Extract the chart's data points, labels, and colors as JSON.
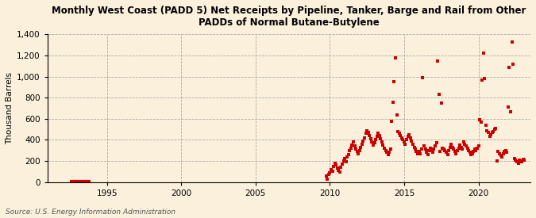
{
  "title": "Monthly West Coast (PADD 5) Net Receipts by Pipeline, Tanker, Barge and Rail from Other\nPADDs of Normal Butane-Butylene",
  "ylabel": "Thousand Barrels",
  "source": "Source: U.S. Energy Information Administration",
  "background_color": "#FAF0DC",
  "plot_bg_color": "#FAF0DC",
  "marker_color": "#CC0000",
  "ylim": [
    0,
    1400
  ],
  "yticks": [
    0,
    200,
    400,
    600,
    800,
    1000,
    1200,
    1400
  ],
  "xlim_start": 1991.0,
  "xlim_end": 2023.5,
  "xticks": [
    1995,
    2000,
    2005,
    2010,
    2015,
    2020
  ],
  "early_line": [
    1992.5,
    1993.9
  ],
  "scatter_data": [
    [
      2009.75,
      55
    ],
    [
      2009.83,
      30
    ],
    [
      2009.92,
      75
    ],
    [
      2010.0,
      90
    ],
    [
      2010.08,
      120
    ],
    [
      2010.17,
      100
    ],
    [
      2010.25,
      150
    ],
    [
      2010.33,
      180
    ],
    [
      2010.42,
      160
    ],
    [
      2010.5,
      130
    ],
    [
      2010.58,
      110
    ],
    [
      2010.67,
      95
    ],
    [
      2010.75,
      140
    ],
    [
      2010.83,
      170
    ],
    [
      2010.92,
      200
    ],
    [
      2011.0,
      220
    ],
    [
      2011.08,
      190
    ],
    [
      2011.17,
      240
    ],
    [
      2011.25,
      260
    ],
    [
      2011.33,
      300
    ],
    [
      2011.42,
      320
    ],
    [
      2011.5,
      350
    ],
    [
      2011.58,
      380
    ],
    [
      2011.67,
      340
    ],
    [
      2011.75,
      310
    ],
    [
      2011.83,
      290
    ],
    [
      2011.92,
      270
    ],
    [
      2012.0,
      300
    ],
    [
      2012.08,
      330
    ],
    [
      2012.17,
      360
    ],
    [
      2012.25,
      390
    ],
    [
      2012.33,
      420
    ],
    [
      2012.42,
      460
    ],
    [
      2012.5,
      490
    ],
    [
      2012.58,
      470
    ],
    [
      2012.67,
      440
    ],
    [
      2012.75,
      410
    ],
    [
      2012.83,
      380
    ],
    [
      2012.92,
      350
    ],
    [
      2013.0,
      370
    ],
    [
      2013.08,
      400
    ],
    [
      2013.17,
      430
    ],
    [
      2013.25,
      460
    ],
    [
      2013.33,
      440
    ],
    [
      2013.42,
      410
    ],
    [
      2013.5,
      380
    ],
    [
      2013.58,
      350
    ],
    [
      2013.67,
      320
    ],
    [
      2013.75,
      300
    ],
    [
      2013.83,
      280
    ],
    [
      2013.92,
      260
    ],
    [
      2014.0,
      280
    ],
    [
      2014.08,
      310
    ],
    [
      2014.17,
      580
    ],
    [
      2014.25,
      760
    ],
    [
      2014.33,
      950
    ],
    [
      2014.42,
      1180
    ],
    [
      2014.5,
      640
    ],
    [
      2014.58,
      480
    ],
    [
      2014.67,
      460
    ],
    [
      2014.75,
      440
    ],
    [
      2014.83,
      420
    ],
    [
      2014.92,
      400
    ],
    [
      2015.0,
      380
    ],
    [
      2015.08,
      360
    ],
    [
      2015.17,
      400
    ],
    [
      2015.25,
      430
    ],
    [
      2015.33,
      450
    ],
    [
      2015.42,
      420
    ],
    [
      2015.5,
      390
    ],
    [
      2015.58,
      360
    ],
    [
      2015.67,
      330
    ],
    [
      2015.75,
      310
    ],
    [
      2015.83,
      290
    ],
    [
      2015.92,
      270
    ],
    [
      2016.0,
      290
    ],
    [
      2016.08,
      270
    ],
    [
      2016.17,
      310
    ],
    [
      2016.25,
      990
    ],
    [
      2016.33,
      340
    ],
    [
      2016.42,
      310
    ],
    [
      2016.5,
      280
    ],
    [
      2016.58,
      260
    ],
    [
      2016.67,
      300
    ],
    [
      2016.75,
      320
    ],
    [
      2016.83,
      300
    ],
    [
      2016.92,
      280
    ],
    [
      2017.0,
      310
    ],
    [
      2017.08,
      340
    ],
    [
      2017.17,
      370
    ],
    [
      2017.25,
      1150
    ],
    [
      2017.33,
      830
    ],
    [
      2017.42,
      290
    ],
    [
      2017.5,
      750
    ],
    [
      2017.58,
      320
    ],
    [
      2017.67,
      310
    ],
    [
      2017.75,
      300
    ],
    [
      2017.83,
      280
    ],
    [
      2017.92,
      260
    ],
    [
      2018.0,
      300
    ],
    [
      2018.08,
      330
    ],
    [
      2018.17,
      360
    ],
    [
      2018.25,
      330
    ],
    [
      2018.33,
      310
    ],
    [
      2018.42,
      290
    ],
    [
      2018.5,
      270
    ],
    [
      2018.58,
      300
    ],
    [
      2018.67,
      320
    ],
    [
      2018.75,
      350
    ],
    [
      2018.83,
      330
    ],
    [
      2018.92,
      310
    ],
    [
      2019.0,
      380
    ],
    [
      2019.08,
      360
    ],
    [
      2019.17,
      340
    ],
    [
      2019.25,
      320
    ],
    [
      2019.33,
      300
    ],
    [
      2019.42,
      280
    ],
    [
      2019.5,
      260
    ],
    [
      2019.58,
      270
    ],
    [
      2019.67,
      290
    ],
    [
      2019.75,
      310
    ],
    [
      2019.83,
      300
    ],
    [
      2019.92,
      320
    ],
    [
      2020.0,
      340
    ],
    [
      2020.08,
      590
    ],
    [
      2020.17,
      570
    ],
    [
      2020.25,
      970
    ],
    [
      2020.33,
      1220
    ],
    [
      2020.42,
      980
    ],
    [
      2020.5,
      540
    ],
    [
      2020.58,
      490
    ],
    [
      2020.67,
      470
    ],
    [
      2020.75,
      430
    ],
    [
      2020.83,
      450
    ],
    [
      2020.92,
      470
    ],
    [
      2021.0,
      480
    ],
    [
      2021.08,
      500
    ],
    [
      2021.17,
      510
    ],
    [
      2021.25,
      200
    ],
    [
      2021.33,
      290
    ],
    [
      2021.42,
      270
    ],
    [
      2021.5,
      250
    ],
    [
      2021.58,
      240
    ],
    [
      2021.67,
      270
    ],
    [
      2021.75,
      290
    ],
    [
      2021.83,
      300
    ],
    [
      2021.92,
      280
    ],
    [
      2022.0,
      710
    ],
    [
      2022.08,
      1090
    ],
    [
      2022.17,
      670
    ],
    [
      2022.25,
      1330
    ],
    [
      2022.33,
      1120
    ],
    [
      2022.42,
      220
    ],
    [
      2022.5,
      210
    ],
    [
      2022.58,
      190
    ],
    [
      2022.67,
      180
    ],
    [
      2022.75,
      210
    ],
    [
      2022.83,
      200
    ],
    [
      2022.92,
      195
    ],
    [
      2023.0,
      215
    ],
    [
      2023.08,
      205
    ]
  ]
}
